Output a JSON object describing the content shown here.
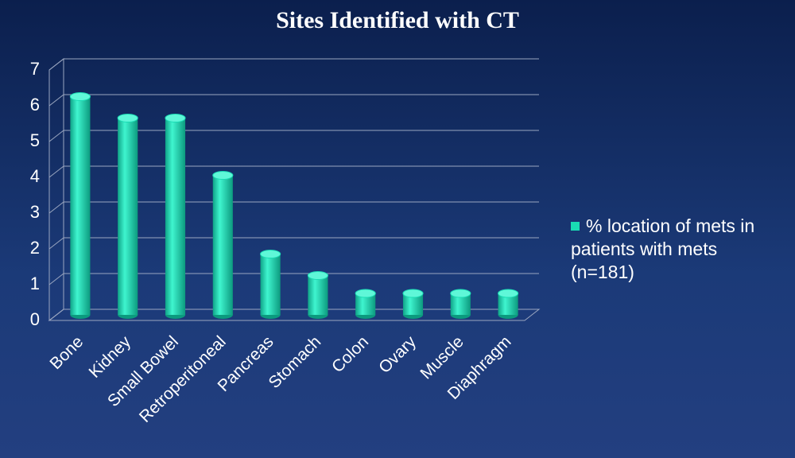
{
  "chart_data": {
    "type": "bar",
    "title": "Sites Identified with CT",
    "categories": [
      "Bone",
      "Kidney",
      "Small Bowel",
      "Retroperitoneal",
      "Pancreas",
      "Stomach",
      "Colon",
      "Ovary",
      "Muscle",
      "Diaphragm"
    ],
    "series": [
      {
        "name": "% location of mets in patients with mets (n=181)",
        "color": "#19dcb4",
        "values": [
          6.1,
          5.5,
          5.5,
          3.9,
          1.7,
          1.1,
          0.6,
          0.6,
          0.6,
          0.6
        ]
      }
    ],
    "ylim": [
      0,
      7
    ],
    "yticks": [
      0,
      1,
      2,
      3,
      4,
      5,
      6,
      7
    ],
    "grid": true,
    "legend": "right"
  }
}
